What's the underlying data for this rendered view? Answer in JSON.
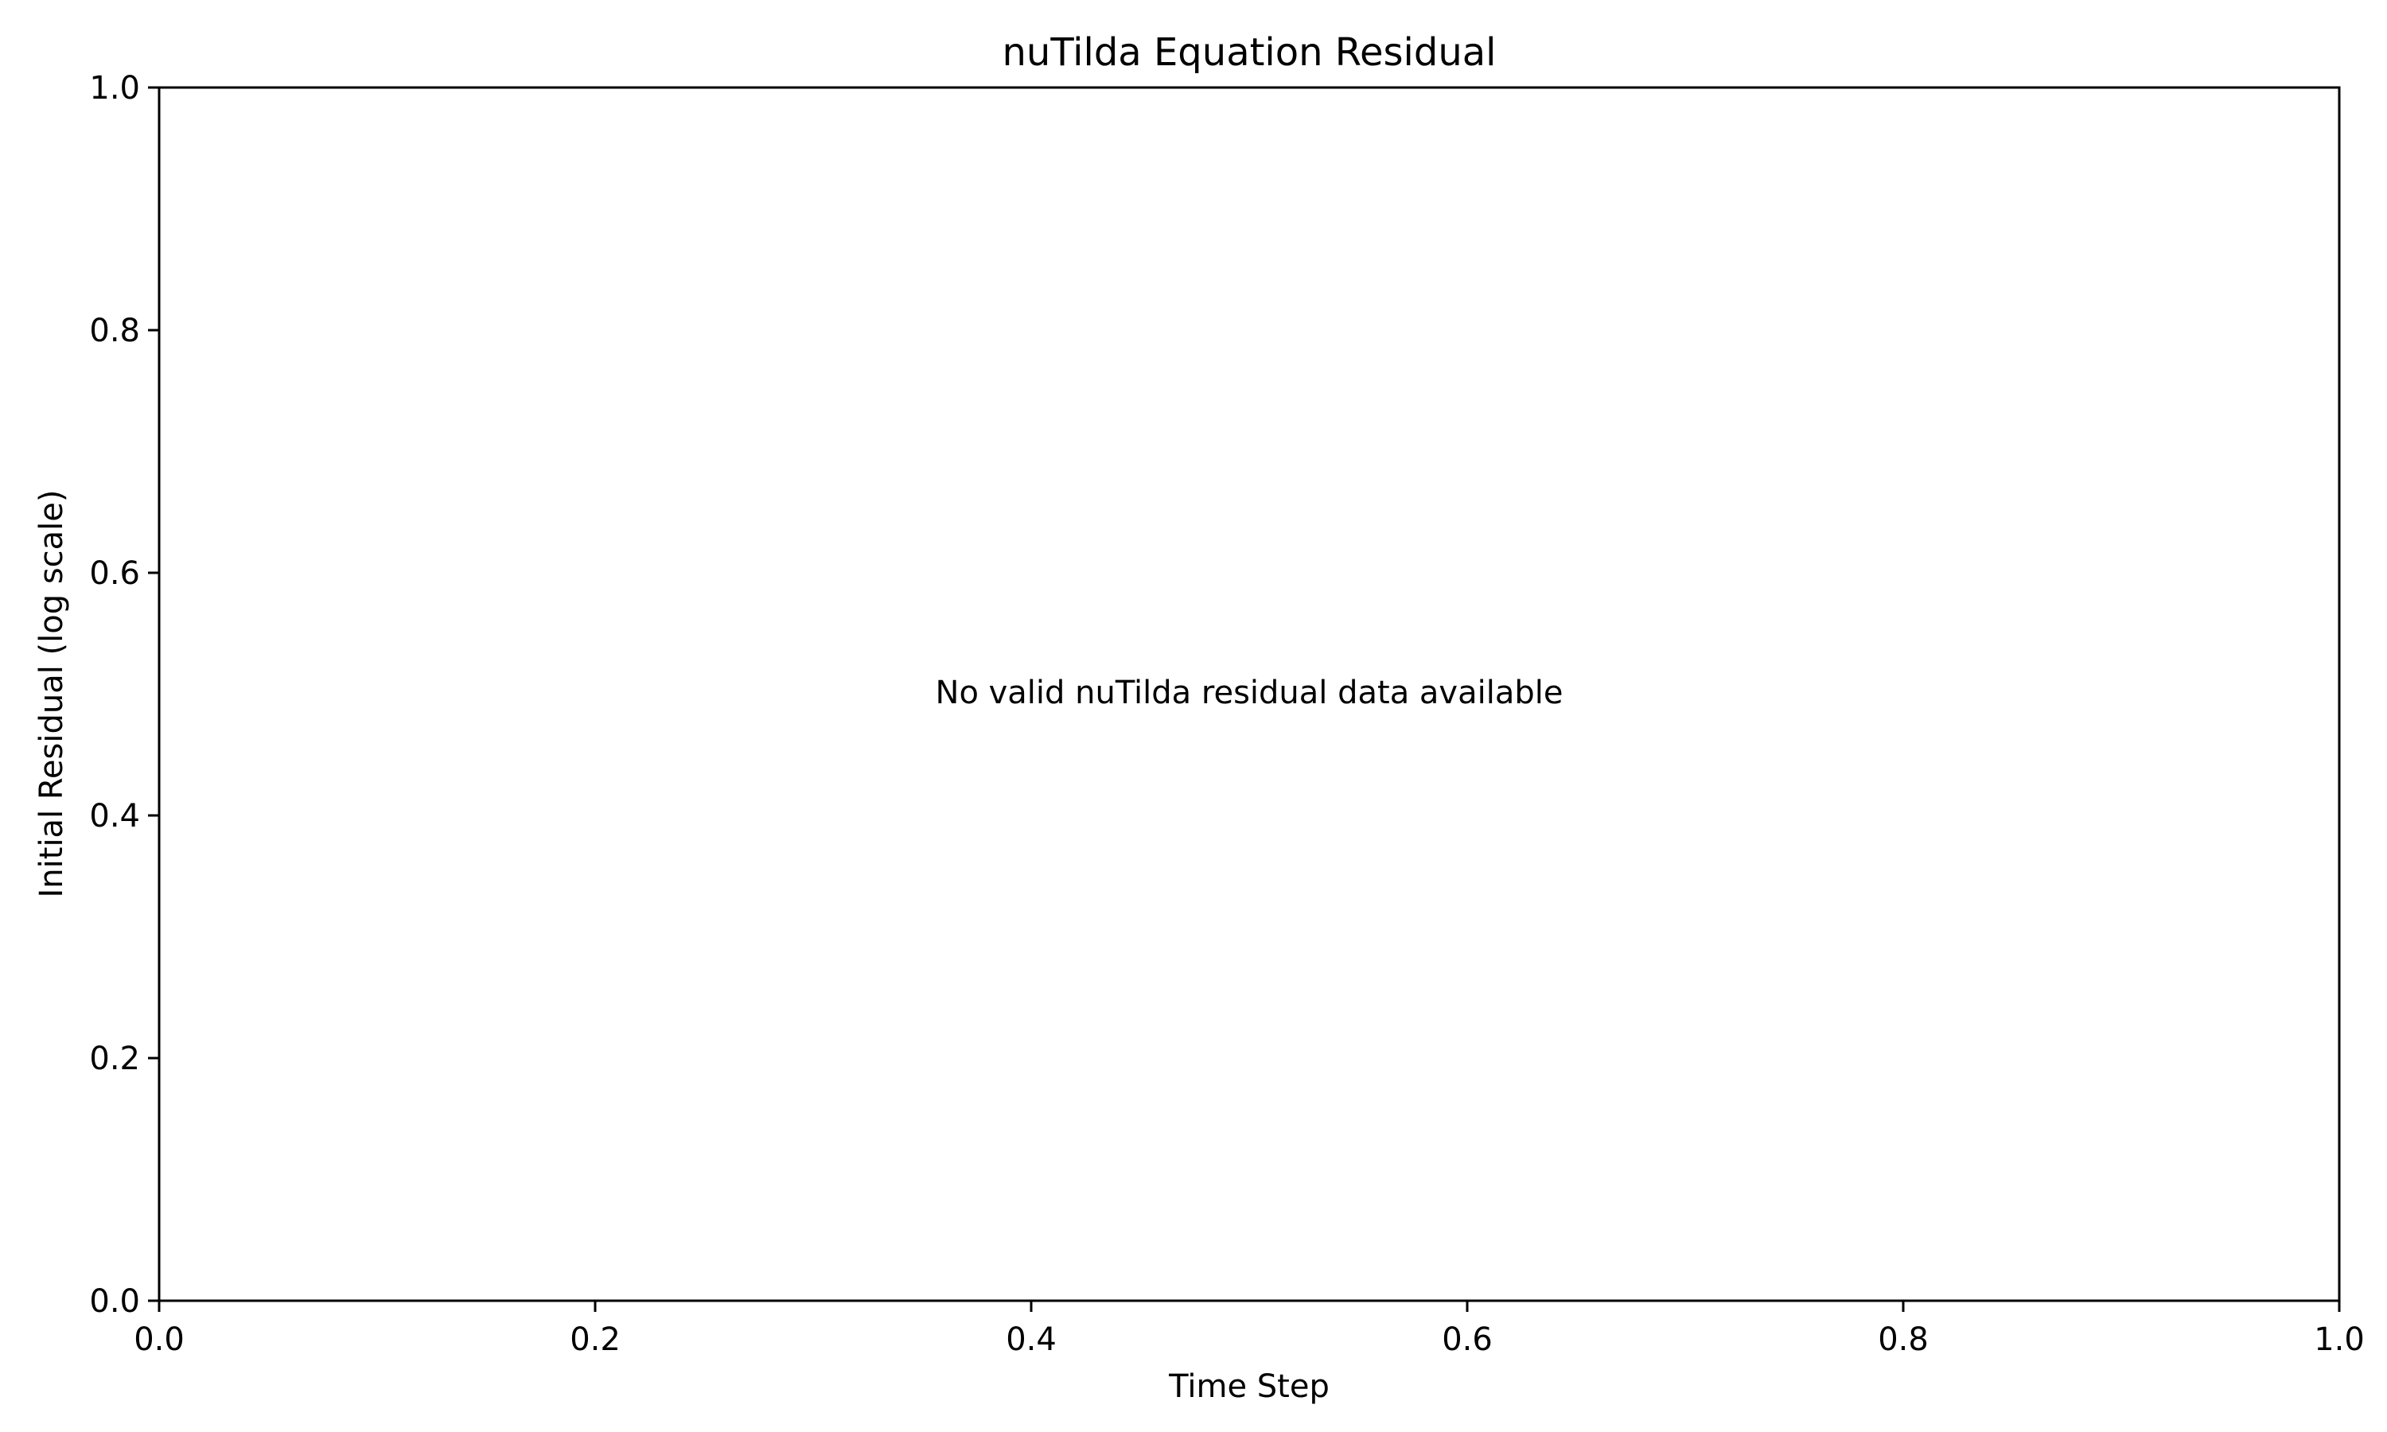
{
  "chart_data": {
    "type": "line",
    "title": "nuTilda Equation Residual",
    "xlabel": "Time Step",
    "ylabel": "Initial Residual (log scale)",
    "xlim": [
      0.0,
      1.0
    ],
    "ylim": [
      0.0,
      1.0
    ],
    "xticks": [
      "0.0",
      "0.2",
      "0.4",
      "0.6",
      "0.8",
      "1.0"
    ],
    "yticks": [
      "0.0",
      "0.2",
      "0.4",
      "0.6",
      "0.8",
      "1.0"
    ],
    "series": [],
    "grid": false,
    "annotation": "No valid nuTilda residual data available"
  },
  "colors": {
    "axis": "#000000",
    "background": "#ffffff"
  }
}
